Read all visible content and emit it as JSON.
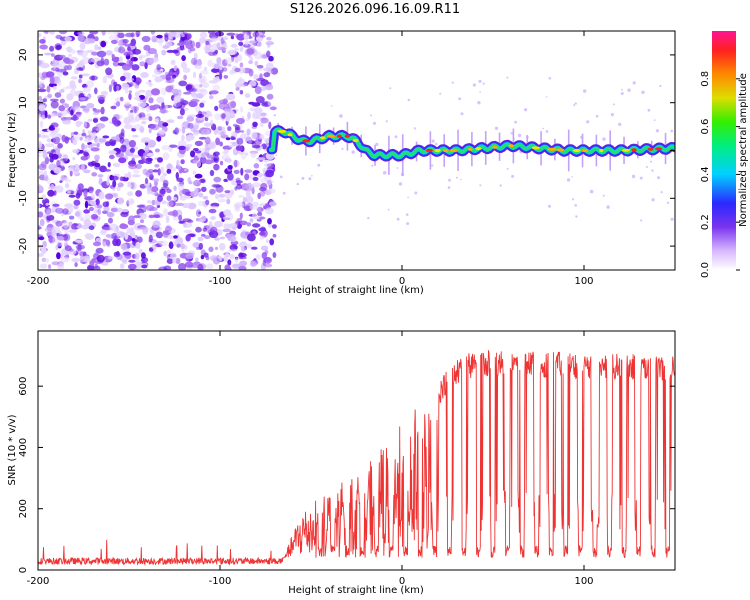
{
  "title": "S126.2026.096.16.09.R11",
  "chart_data": [
    {
      "type": "heatmap",
      "name": "spectrogram",
      "xlabel": "Height of straight line (km)",
      "ylabel": "Frequency (Hz)",
      "xlim": [
        -200,
        150
      ],
      "ylim": [
        -25,
        25
      ],
      "xticks": [
        -200,
        -100,
        0,
        100
      ],
      "yticks": [
        -20,
        -10,
        0,
        10,
        20
      ],
      "noise_region_x": [
        -200,
        -70
      ],
      "signal_track": [
        {
          "x": -70,
          "f": 4
        },
        {
          "x": -65,
          "f": 4
        },
        {
          "x": -60,
          "f": 3
        },
        {
          "x": -55,
          "f": 2
        },
        {
          "x": -50,
          "f": 2
        },
        {
          "x": -45,
          "f": 2.5
        },
        {
          "x": -40,
          "f": 3
        },
        {
          "x": -35,
          "f": 3
        },
        {
          "x": -30,
          "f": 3
        },
        {
          "x": -25,
          "f": 2
        },
        {
          "x": -20,
          "f": 0
        },
        {
          "x": -15,
          "f": -1
        },
        {
          "x": -10,
          "f": -1
        },
        {
          "x": 0,
          "f": -1
        },
        {
          "x": 10,
          "f": 0
        },
        {
          "x": 30,
          "f": 0
        },
        {
          "x": 60,
          "f": 1
        },
        {
          "x": 90,
          "f": 0
        },
        {
          "x": 120,
          "f": 0
        },
        {
          "x": 150,
          "f": 0.5
        }
      ],
      "colorbar": {
        "label": "Normalized spectral amplitude",
        "range": [
          0,
          1
        ],
        "ticks": [
          "0.0",
          "0.2",
          "0.4",
          "0.6",
          "0.8"
        ]
      }
    },
    {
      "type": "line",
      "name": "snr",
      "xlabel": "Height of straight line (km)",
      "ylabel": "SNR (10 * v/v)",
      "xlim": [
        -200,
        150
      ],
      "ylim": [
        0,
        780
      ],
      "xticks": [
        -200,
        -100,
        0,
        100
      ],
      "yticks": [
        0,
        200,
        400,
        600
      ],
      "color": "#ee3333",
      "envelope": [
        {
          "x": -200,
          "y": 30
        },
        {
          "x": -80,
          "y": 30
        },
        {
          "x": -65,
          "y": 40
        },
        {
          "x": -55,
          "y": 200
        },
        {
          "x": -40,
          "y": 260
        },
        {
          "x": -30,
          "y": 300
        },
        {
          "x": -20,
          "y": 360
        },
        {
          "x": -10,
          "y": 420
        },
        {
          "x": 0,
          "y": 480
        },
        {
          "x": 5,
          "y": 520
        },
        {
          "x": 15,
          "y": 560
        },
        {
          "x": 20,
          "y": 610
        },
        {
          "x": 25,
          "y": 660
        },
        {
          "x": 35,
          "y": 710
        },
        {
          "x": 50,
          "y": 720
        },
        {
          "x": 150,
          "y": 700
        }
      ],
      "dips": [
        -45,
        -38,
        -30,
        -22,
        -14,
        -6,
        2,
        10,
        18,
        26,
        34,
        42,
        50,
        58,
        66,
        74,
        82,
        90,
        98,
        106,
        114,
        122,
        130,
        138,
        146
      ]
    }
  ]
}
